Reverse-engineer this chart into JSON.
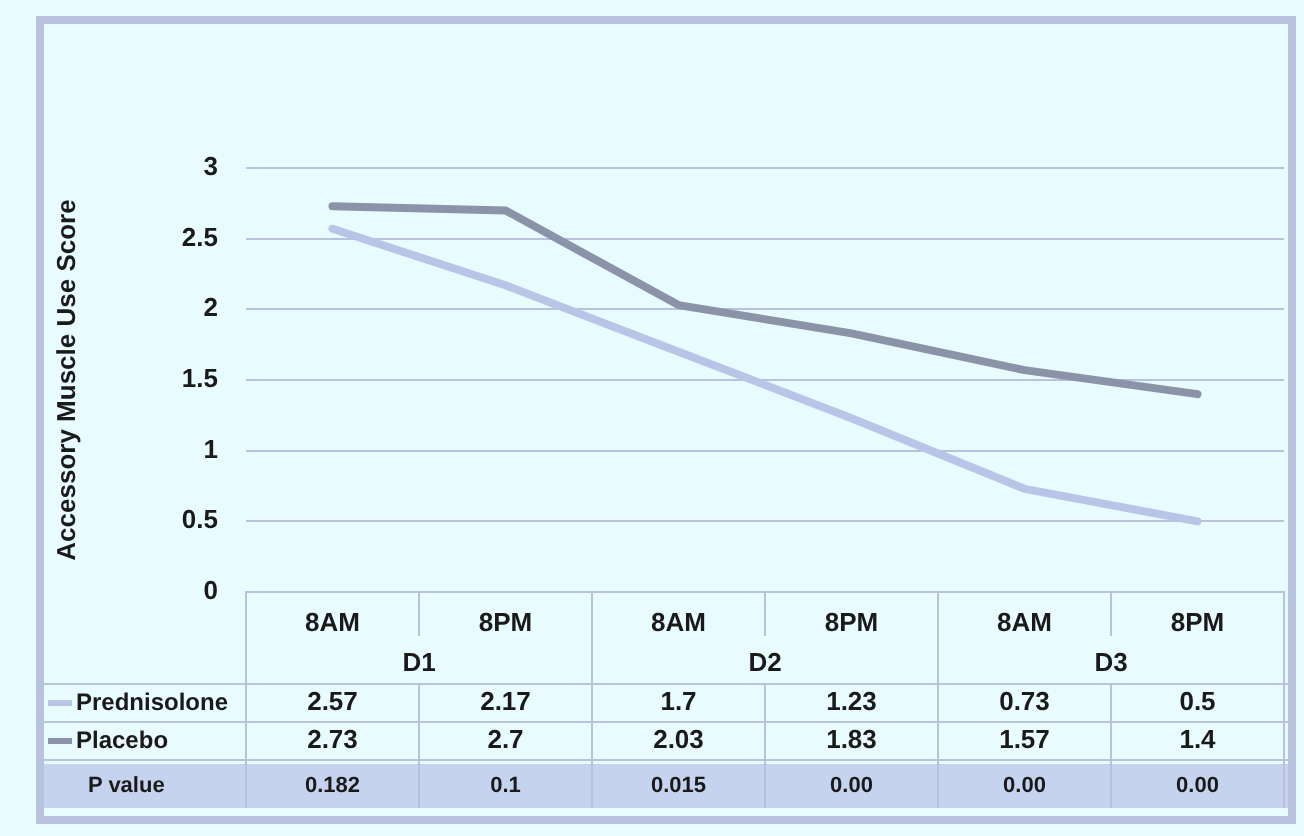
{
  "chart_data": {
    "type": "line",
    "ylabel": "Accessory Muscle Use Score",
    "categories": [
      "8AM",
      "8PM",
      "8AM",
      "8PM",
      "8AM",
      "8PM"
    ],
    "series": [
      {
        "name": "Prednisolone",
        "color": "#b9c4e6",
        "values": [
          2.57,
          2.17,
          1.7,
          1.23,
          0.73,
          0.5
        ]
      },
      {
        "name": "Placebo",
        "color": "#8a93a8",
        "values": [
          2.73,
          2.7,
          2.03,
          1.83,
          1.57,
          1.4
        ]
      }
    ],
    "ylim": [
      0,
      3
    ],
    "yticks": [
      0,
      0.5,
      1,
      1.5,
      2,
      2.5,
      3
    ],
    "grid": "y",
    "legend": "bottom left",
    "marker": "none",
    "line_style": "solid",
    "data_labels": true,
    "annotations": [
      "D1",
      "D2",
      "D3",
      "P value",
      "0.182",
      "0.1",
      "0.015",
      "0.00",
      "0.00",
      "0.00"
    ]
  }
}
